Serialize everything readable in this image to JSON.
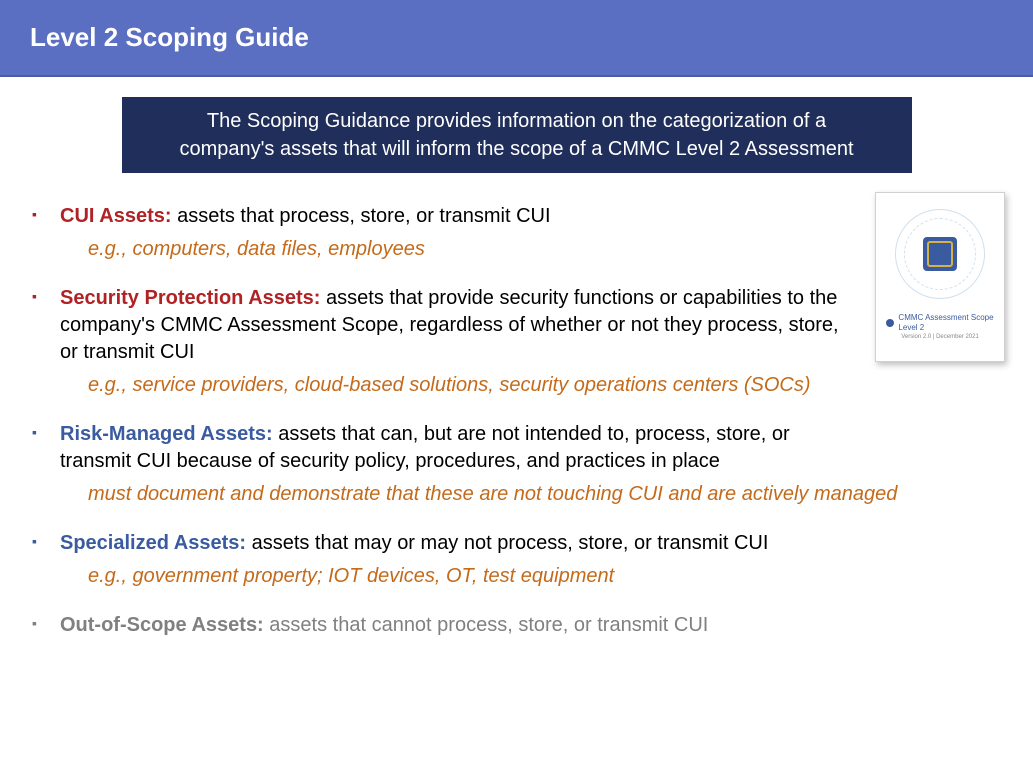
{
  "header": {
    "title": "Level 2 Scoping Guide"
  },
  "banner": {
    "text": "The Scoping Guidance provides information on the categorization of a company's assets that will inform the scope of a CMMC Level 2 Assessment"
  },
  "thumbnail": {
    "title": "CMMC Assessment Scope",
    "subtitle": "Level 2",
    "footer": "Version 2.0 | December 2021"
  },
  "assets": [
    {
      "term": "CUI Assets:",
      "term_color": "red",
      "bullet": "bullet-red",
      "desc": "  assets that process, store, or transmit CUI",
      "desc_color": "",
      "example": "e.g., computers, data files, employees",
      "narrow": true
    },
    {
      "term": "Security Protection Assets:",
      "term_color": "red",
      "bullet": "bullet-red",
      "desc": "  assets that provide security functions or capabilities to the company's CMMC Assessment Scope, regardless of whether or not they process, store, or transmit CUI",
      "desc_color": "",
      "example": "e.g., service providers, cloud-based solutions, security operations centers (SOCs)",
      "narrow": true
    },
    {
      "term": "Risk-Managed Assets:",
      "term_color": "blue",
      "bullet": "bullet-blue",
      "desc": "  assets that can, but are not intended to, process, store, or transmit CUI because of security policy, procedures, and practices in place",
      "desc_color": "",
      "example": "must document and demonstrate that these are not touching CUI and are actively managed",
      "narrow": true
    },
    {
      "term": "Specialized Assets:",
      "term_color": "blue",
      "bullet": "bullet-blue",
      "desc": "  assets that may or may not process, store, or transmit CUI",
      "desc_color": "",
      "example": "e.g., government property; IOT devices, OT, test equipment",
      "narrow": false
    },
    {
      "term": "Out-of-Scope Assets:",
      "term_color": "gray",
      "bullet": "bullet-gray",
      "desc": "  assets that cannot process, store, or transmit CUI",
      "desc_color": "gray",
      "example": "",
      "narrow": false
    }
  ],
  "colors": {
    "header_bg": "#5b6fc2",
    "banner_bg": "#1f2e5a",
    "red": "#b02224",
    "blue": "#3a5ba0",
    "gray": "#808080",
    "orange": "#c46a1a"
  }
}
